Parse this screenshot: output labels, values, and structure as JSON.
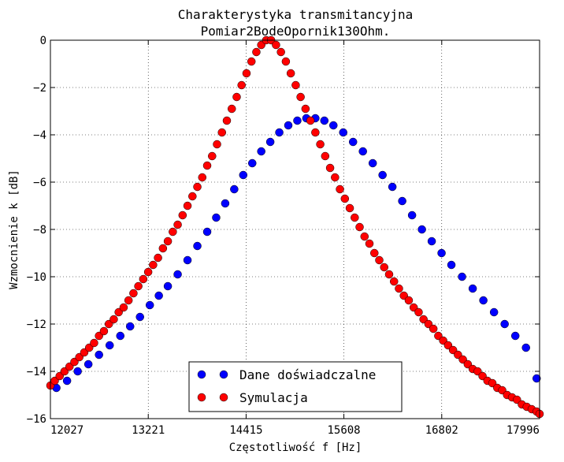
{
  "chart_data": {
    "type": "scatter",
    "title": "Charakterystyka transmitancyjna",
    "subtitle": "Pomiar2BodeOpornik130Ohm.",
    "xlabel": "Częstotliwość f [Hz]",
    "ylabel": "Wzmocnienie k [dB]",
    "xlim": [
      12027,
      17996
    ],
    "ylim": [
      -16,
      0
    ],
    "xticks": [
      12027,
      13221,
      14415,
      15608,
      16802,
      17996
    ],
    "xtick_labels": [
      "12027",
      "13221",
      "14415",
      "15608",
      "16802",
      "17996"
    ],
    "yticks": [
      0,
      -2,
      -4,
      -6,
      -8,
      -10,
      -12,
      -14,
      -16
    ],
    "ytick_labels": [
      "0",
      "−2",
      "−4",
      "−6",
      "−8",
      "−10",
      "−12",
      "−14",
      "−16"
    ],
    "grid": true,
    "legend_position": "bottom-center",
    "series": [
      {
        "name": "Dane doświadczalne",
        "color": "#0000ff",
        "x": [
          12100,
          12230,
          12360,
          12490,
          12620,
          12750,
          12880,
          13000,
          13120,
          13240,
          13350,
          13460,
          13580,
          13700,
          13820,
          13940,
          14050,
          14160,
          14270,
          14380,
          14490,
          14600,
          14710,
          14820,
          14930,
          15040,
          15150,
          15260,
          15370,
          15480,
          15600,
          15720,
          15840,
          15960,
          16080,
          16200,
          16320,
          16440,
          16560,
          16680,
          16800,
          16920,
          17050,
          17180,
          17310,
          17440,
          17570,
          17700,
          17830,
          17960
        ],
        "y": [
          -14.7,
          -14.4,
          -14.0,
          -13.7,
          -13.3,
          -12.9,
          -12.5,
          -12.1,
          -11.7,
          -11.2,
          -10.8,
          -10.4,
          -9.9,
          -9.3,
          -8.7,
          -8.1,
          -7.5,
          -6.9,
          -6.3,
          -5.7,
          -5.2,
          -4.7,
          -4.3,
          -3.9,
          -3.6,
          -3.4,
          -3.3,
          -3.3,
          -3.4,
          -3.6,
          -3.9,
          -4.3,
          -4.7,
          -5.2,
          -5.7,
          -6.2,
          -6.8,
          -7.4,
          -8.0,
          -8.5,
          -9.0,
          -9.5,
          -10.0,
          -10.5,
          -11.0,
          -11.5,
          -12.0,
          -12.5,
          -13.0,
          -14.3
        ]
      },
      {
        "name": "Symulacja",
        "color": "#ff0000",
        "x": [
          12027,
          12080,
          12140,
          12200,
          12260,
          12320,
          12380,
          12440,
          12500,
          12560,
          12620,
          12680,
          12740,
          12800,
          12860,
          12920,
          12980,
          13040,
          13100,
          13160,
          13220,
          13280,
          13340,
          13400,
          13460,
          13520,
          13580,
          13640,
          13700,
          13760,
          13820,
          13880,
          13940,
          14000,
          14060,
          14120,
          14180,
          14240,
          14300,
          14360,
          14420,
          14480,
          14540,
          14600,
          14660,
          14720,
          14780,
          14840,
          14900,
          14960,
          15020,
          15080,
          15140,
          15200,
          15260,
          15320,
          15380,
          15440,
          15500,
          15560,
          15620,
          15680,
          15740,
          15800,
          15860,
          15920,
          15980,
          16040,
          16100,
          16160,
          16220,
          16280,
          16340,
          16400,
          16460,
          16520,
          16580,
          16640,
          16700,
          16760,
          16820,
          16880,
          16940,
          17000,
          17060,
          17120,
          17180,
          17240,
          17300,
          17360,
          17420,
          17480,
          17540,
          17600,
          17660,
          17720,
          17780,
          17840,
          17900,
          17960,
          17996
        ],
        "y": [
          -14.6,
          -14.4,
          -14.2,
          -14.0,
          -13.8,
          -13.6,
          -13.4,
          -13.2,
          -13.0,
          -12.8,
          -12.5,
          -12.3,
          -12.0,
          -11.8,
          -11.5,
          -11.3,
          -11.0,
          -10.7,
          -10.4,
          -10.1,
          -9.8,
          -9.5,
          -9.2,
          -8.8,
          -8.5,
          -8.1,
          -7.8,
          -7.4,
          -7.0,
          -6.6,
          -6.2,
          -5.8,
          -5.3,
          -4.9,
          -4.4,
          -3.9,
          -3.4,
          -2.9,
          -2.4,
          -1.9,
          -1.4,
          -0.9,
          -0.5,
          -0.2,
          0.0,
          0.0,
          -0.2,
          -0.5,
          -0.9,
          -1.4,
          -1.9,
          -2.4,
          -2.9,
          -3.4,
          -3.9,
          -4.4,
          -4.9,
          -5.4,
          -5.8,
          -6.3,
          -6.7,
          -7.1,
          -7.5,
          -7.9,
          -8.3,
          -8.6,
          -9.0,
          -9.3,
          -9.6,
          -9.9,
          -10.2,
          -10.5,
          -10.8,
          -11.0,
          -11.3,
          -11.5,
          -11.8,
          -12.0,
          -12.2,
          -12.5,
          -12.7,
          -12.9,
          -13.1,
          -13.3,
          -13.5,
          -13.7,
          -13.9,
          -14.0,
          -14.2,
          -14.4,
          -14.5,
          -14.7,
          -14.8,
          -15.0,
          -15.1,
          -15.2,
          -15.4,
          -15.5,
          -15.6,
          -15.7,
          -15.8
        ]
      }
    ]
  }
}
